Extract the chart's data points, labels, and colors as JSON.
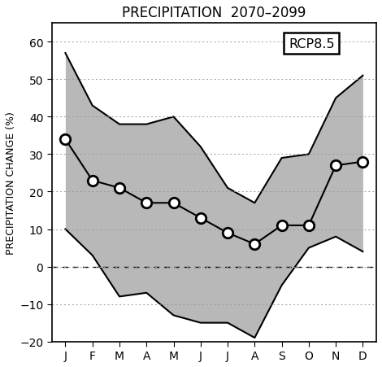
{
  "title": "PRECIPITATION  2070–2099",
  "ylabel": "PRECIPITATION CHANGE (%)",
  "months": [
    "J",
    "F",
    "M",
    "A",
    "M",
    "J",
    "J",
    "A",
    "S",
    "O",
    "N",
    "D"
  ],
  "mean": [
    34,
    23,
    21,
    17,
    17,
    13,
    9,
    6,
    11,
    11,
    27,
    28
  ],
  "upper": [
    57,
    43,
    38,
    38,
    40,
    32,
    21,
    17,
    29,
    30,
    45,
    51
  ],
  "lower": [
    10,
    3,
    -8,
    -7,
    -13,
    -15,
    -15,
    -19,
    -5,
    5,
    8,
    4
  ],
  "ylim": [
    -20,
    65
  ],
  "yticks": [
    -20,
    -10,
    0,
    10,
    20,
    30,
    40,
    50,
    60
  ],
  "shade_color": "#b8b8b8",
  "line_color": "#000000",
  "grid_color": "#999999",
  "bg_color": "#ffffff",
  "legend_label": "RCP8.5",
  "title_fontsize": 12,
  "label_fontsize": 9,
  "tick_fontsize": 10
}
